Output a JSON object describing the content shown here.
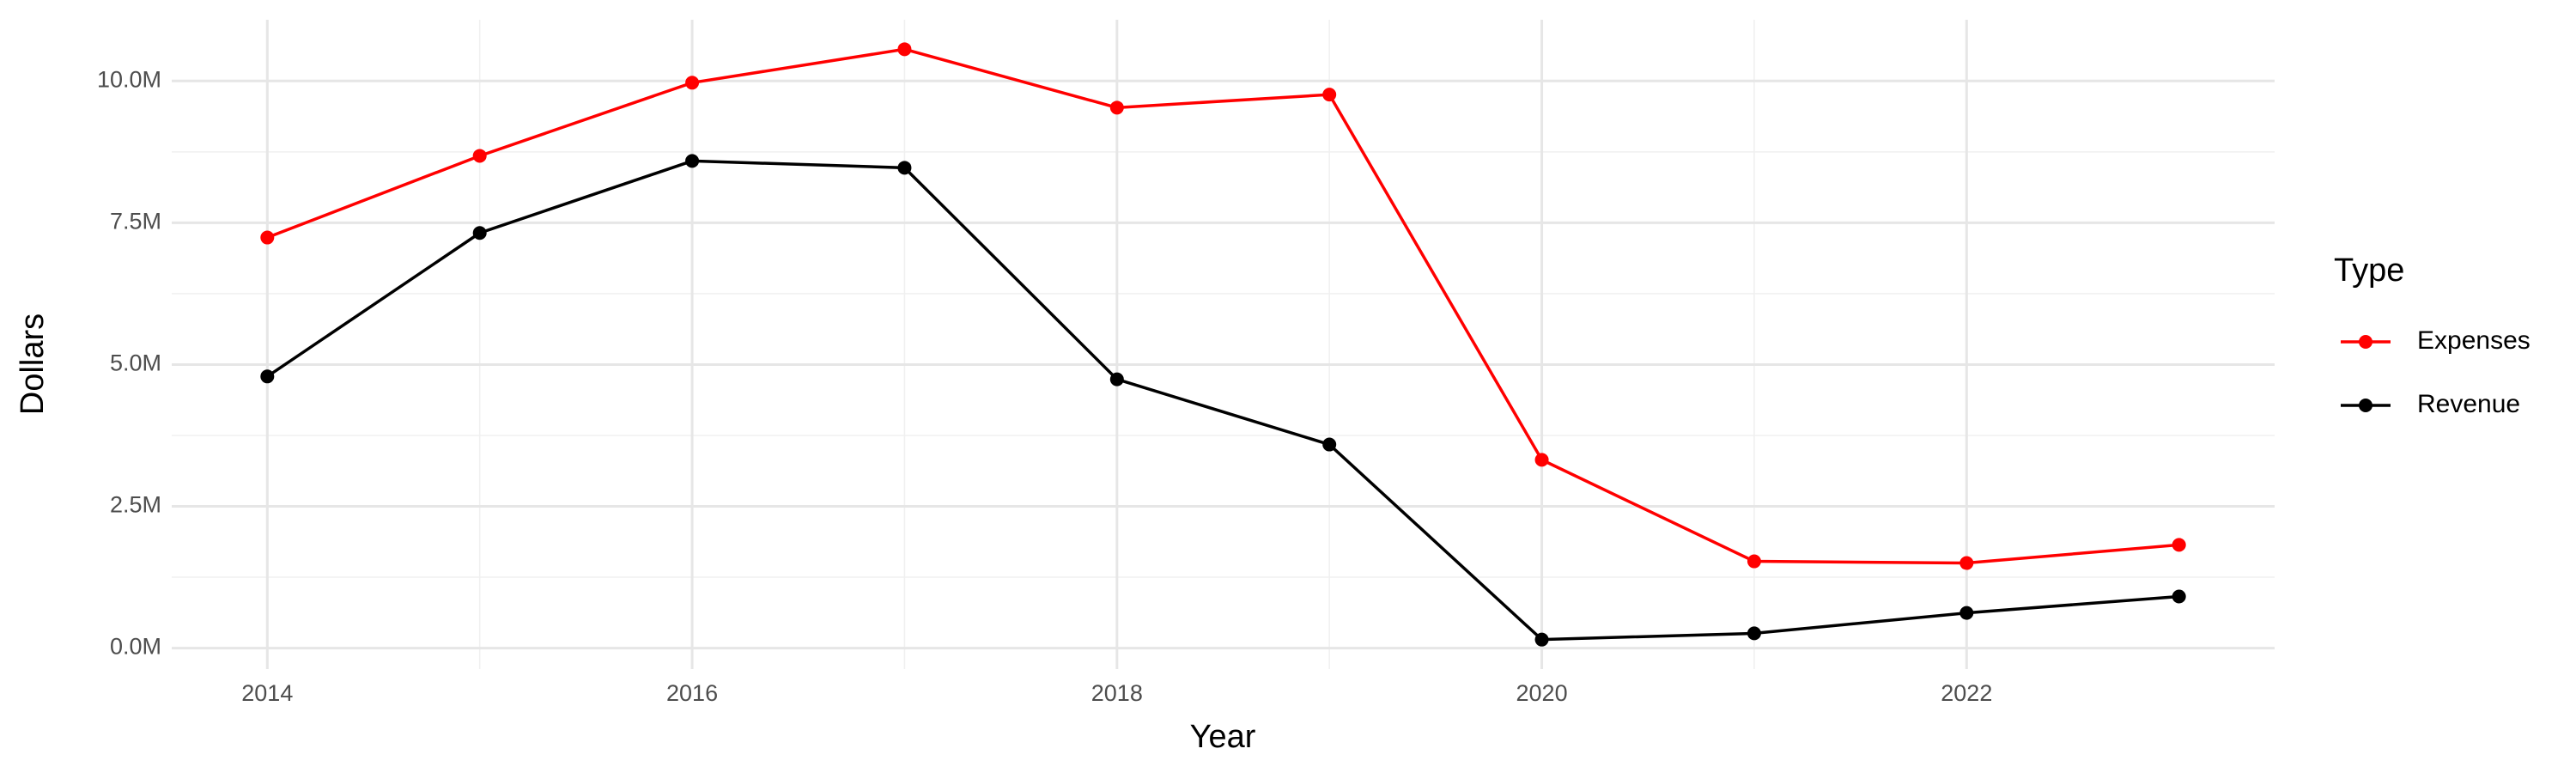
{
  "chart_data": {
    "type": "line",
    "x_label": "Year",
    "y_label": "Dollars",
    "legend_title": "Type",
    "x": [
      2014,
      2015,
      2016,
      2017,
      2018,
      2019,
      2020,
      2021,
      2022,
      2023
    ],
    "series": [
      {
        "name": "Expenses",
        "color": "#ff0000",
        "values": [
          7240000,
          8680000,
          9970000,
          10560000,
          9530000,
          9760000,
          3320000,
          1530000,
          1500000,
          1820000
        ]
      },
      {
        "name": "Revenue",
        "color": "#000000",
        "values": [
          4790000,
          7320000,
          8590000,
          8470000,
          4740000,
          3590000,
          150000,
          260000,
          620000,
          910000
        ]
      }
    ],
    "xlim": [
      2013.55,
      2023.45
    ],
    "xticks": [
      2014,
      2016,
      2018,
      2020,
      2022
    ],
    "ylim": [
      -370000,
      11080000
    ],
    "yticks": [
      {
        "value": 0,
        "label": "0.0M"
      },
      {
        "value": 2500000,
        "label": "2.5M"
      },
      {
        "value": 5000000,
        "label": "5.0M"
      },
      {
        "value": 7500000,
        "label": "7.5M"
      },
      {
        "value": 10000000,
        "label": "10.0M"
      }
    ],
    "grid": true,
    "legend": "right"
  }
}
